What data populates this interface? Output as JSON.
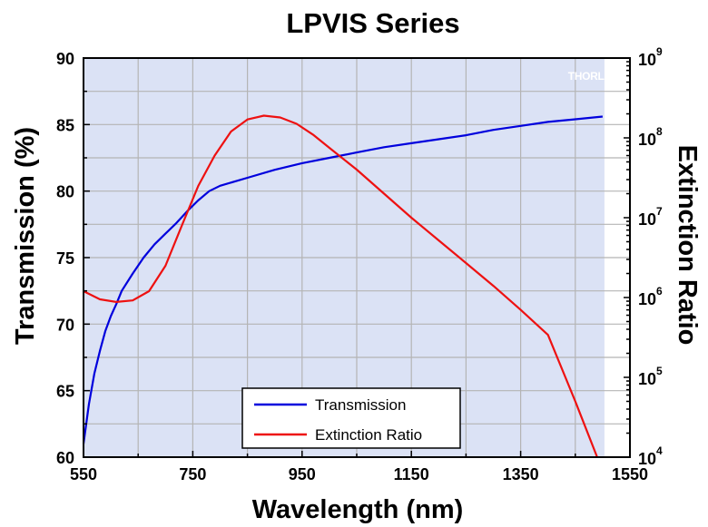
{
  "chart_data": {
    "type": "line",
    "title": "LPVIS Series",
    "xlabel": "Wavelength (nm)",
    "ylabel": "Transmission (%)",
    "y2label": "Extinction Ratio",
    "xlim": [
      550,
      1550
    ],
    "ylim": [
      60,
      90
    ],
    "y2lim": [
      10000,
      1000000000
    ],
    "y2scale": "log",
    "x_ticks": [
      "550",
      "750",
      "950",
      "1150",
      "1350",
      "1550"
    ],
    "y_ticks": [
      "60",
      "65",
      "70",
      "75",
      "80",
      "85",
      "90"
    ],
    "y2_ticks": [
      {
        "base": "10",
        "exp": "4"
      },
      {
        "base": "10",
        "exp": "5"
      },
      {
        "base": "10",
        "exp": "6"
      },
      {
        "base": "10",
        "exp": "7"
      },
      {
        "base": "10",
        "exp": "8"
      },
      {
        "base": "10",
        "exp": "9"
      }
    ],
    "grid": true,
    "legend_position": "bottom-center",
    "series": [
      {
        "name": "Transmission",
        "axis": "left",
        "color": "#0000dd",
        "x": [
          550,
          560,
          570,
          580,
          590,
          600,
          610,
          620,
          640,
          660,
          680,
          700,
          720,
          740,
          760,
          780,
          800,
          850,
          900,
          950,
          1000,
          1050,
          1100,
          1150,
          1200,
          1250,
          1300,
          1350,
          1400,
          1450,
          1500
        ],
        "y": [
          61.0,
          64.0,
          66.3,
          68.0,
          69.5,
          70.6,
          71.5,
          72.5,
          73.8,
          75.0,
          76.0,
          76.8,
          77.6,
          78.5,
          79.3,
          80.0,
          80.4,
          81.0,
          81.6,
          82.1,
          82.5,
          82.9,
          83.3,
          83.6,
          83.9,
          84.2,
          84.6,
          84.9,
          85.2,
          85.4,
          85.6
        ]
      },
      {
        "name": "Extinction Ratio",
        "axis": "right",
        "color": "#ee1111",
        "x": [
          550,
          580,
          610,
          640,
          670,
          700,
          730,
          760,
          790,
          820,
          850,
          880,
          910,
          940,
          970,
          1000,
          1050,
          1100,
          1150,
          1200,
          1250,
          1300,
          1350,
          1400,
          1450,
          1490
        ],
        "y": [
          1200000,
          950000,
          880000,
          920000,
          1200000,
          2500000,
          8000000,
          25000000,
          60000000,
          120000000,
          170000000,
          190000000,
          180000000,
          150000000,
          110000000,
          75000000,
          40000000,
          20000000,
          10000000,
          5200000,
          2700000,
          1400000,
          700000,
          340000,
          50000,
          10000
        ]
      }
    ]
  },
  "watermark": "THORLABS"
}
